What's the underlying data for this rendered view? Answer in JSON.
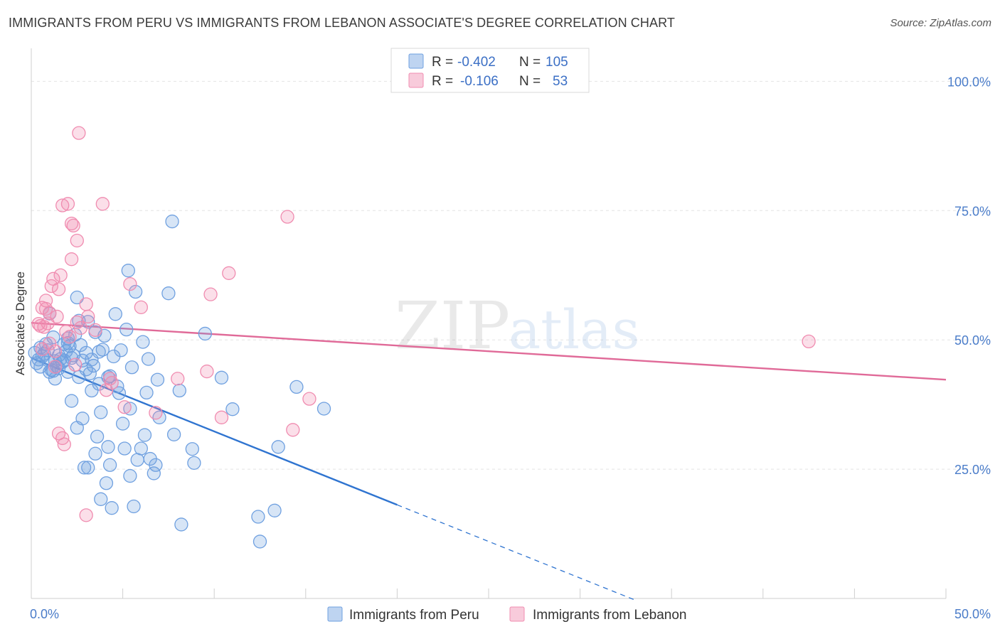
{
  "header": {
    "title": "IMMIGRANTS FROM PERU VS IMMIGRANTS FROM LEBANON ASSOCIATE'S DEGREE CORRELATION CHART",
    "source": "Source: ZipAtlas.com"
  },
  "watermark": {
    "zip": "ZIP",
    "atlas": "atlas"
  },
  "legend_top": [
    {
      "r_label": "R =",
      "r_value": "-0.402",
      "n_label": "N =",
      "n_value": "105",
      "color": "#6fa0e0"
    },
    {
      "r_label": "R =",
      "r_value": "-0.106",
      "n_label": "N =",
      "n_value": "53",
      "color": "#f08cb0"
    }
  ],
  "chart_data": {
    "type": "scatter",
    "title": "IMMIGRANTS FROM PERU VS IMMIGRANTS FROM LEBANON ASSOCIATE'S DEGREE CORRELATION CHART",
    "xlabel": "",
    "ylabel": "Associate's Degree",
    "xlim": [
      0,
      50
    ],
    "ylim": [
      0,
      105
    ],
    "x_tick_labels": [
      "0.0%",
      "50.0%"
    ],
    "y_ticks": [
      25,
      50,
      75,
      100
    ],
    "y_tick_labels": [
      "25.0%",
      "50.0%",
      "75.0%",
      "100.0%"
    ],
    "grid": true,
    "legend_position": "bottom-center",
    "series": [
      {
        "name": "Immigrants from Peru",
        "color": "#6fa0e0",
        "line_color": "#2f74d0",
        "trend": {
          "x0": 0,
          "y0": 46.5,
          "x1": 20,
          "y1": 18.1,
          "dash_to_x": 33,
          "dash_to_y": -0.3
        },
        "points": [
          [
            0.2,
            47.5
          ],
          [
            0.3,
            45.5
          ],
          [
            0.4,
            46.2
          ],
          [
            0.5,
            44.8
          ],
          [
            0.6,
            46.8
          ],
          [
            0.7,
            47.3
          ],
          [
            0.8,
            49.2
          ],
          [
            0.9,
            46.1
          ],
          [
            1.0,
            55.1
          ],
          [
            1.0,
            43.8
          ],
          [
            1.1,
            44.2
          ],
          [
            1.2,
            50.5
          ],
          [
            1.3,
            42.5
          ],
          [
            1.3,
            45.9
          ],
          [
            1.4,
            44.9
          ],
          [
            1.5,
            44.5
          ],
          [
            1.6,
            46.3
          ],
          [
            1.7,
            45.7
          ],
          [
            1.8,
            46.0
          ],
          [
            1.8,
            49.2
          ],
          [
            1.9,
            47.8
          ],
          [
            2.0,
            43.8
          ],
          [
            2.0,
            49.4
          ],
          [
            2.1,
            48.8
          ],
          [
            2.2,
            46.5
          ],
          [
            2.2,
            38.2
          ],
          [
            2.3,
            47.0
          ],
          [
            2.4,
            51.0
          ],
          [
            2.5,
            33.0
          ],
          [
            2.5,
            58.2
          ],
          [
            2.6,
            53.7
          ],
          [
            2.7,
            49.0
          ],
          [
            2.8,
            34.8
          ],
          [
            2.8,
            46.0
          ],
          [
            2.9,
            25.3
          ],
          [
            3.0,
            47.5
          ],
          [
            3.1,
            25.3
          ],
          [
            3.1,
            53.5
          ],
          [
            3.2,
            43.5
          ],
          [
            3.3,
            46.2
          ],
          [
            3.3,
            40.2
          ],
          [
            3.4,
            45.0
          ],
          [
            3.5,
            28.0
          ],
          [
            3.5,
            51.5
          ],
          [
            3.6,
            31.3
          ],
          [
            3.7,
            47.7
          ],
          [
            3.8,
            19.2
          ],
          [
            3.8,
            36.0
          ],
          [
            3.9,
            48.1
          ],
          [
            4.0,
            50.8
          ],
          [
            4.1,
            22.3
          ],
          [
            4.2,
            29.3
          ],
          [
            4.2,
            42.8
          ],
          [
            4.3,
            25.8
          ],
          [
            4.4,
            17.5
          ],
          [
            4.5,
            46.8
          ],
          [
            4.6,
            55.0
          ],
          [
            4.7,
            41.0
          ],
          [
            4.8,
            39.7
          ],
          [
            4.9,
            48.0
          ],
          [
            5.0,
            33.8
          ],
          [
            5.1,
            29.0
          ],
          [
            5.2,
            52.0
          ],
          [
            5.3,
            63.4
          ],
          [
            5.4,
            23.7
          ],
          [
            5.4,
            36.7
          ],
          [
            5.6,
            17.8
          ],
          [
            5.7,
            59.3
          ],
          [
            5.8,
            26.8
          ],
          [
            6.0,
            29.0
          ],
          [
            6.1,
            49.6
          ],
          [
            6.2,
            31.6
          ],
          [
            6.3,
            39.8
          ],
          [
            6.5,
            27.0
          ],
          [
            6.7,
            24.2
          ],
          [
            6.8,
            25.8
          ],
          [
            6.9,
            42.3
          ],
          [
            7.0,
            35.0
          ],
          [
            7.5,
            59.0
          ],
          [
            7.7,
            72.9
          ],
          [
            7.8,
            31.7
          ],
          [
            8.1,
            40.2
          ],
          [
            8.2,
            14.3
          ],
          [
            8.8,
            28.9
          ],
          [
            8.9,
            26.2
          ],
          [
            9.5,
            51.2
          ],
          [
            10.4,
            42.7
          ],
          [
            11.0,
            36.6
          ],
          [
            12.4,
            15.8
          ],
          [
            12.5,
            11.0
          ],
          [
            13.3,
            17.0
          ],
          [
            13.5,
            29.3
          ],
          [
            14.5,
            40.9
          ],
          [
            16.0,
            36.7
          ],
          [
            0.5,
            48.5
          ],
          [
            1.2,
            44.0
          ],
          [
            2.0,
            50.3
          ],
          [
            3.0,
            44.3
          ],
          [
            4.3,
            43.0
          ],
          [
            1.5,
            47.0
          ],
          [
            0.9,
            48.0
          ],
          [
            2.6,
            42.8
          ],
          [
            3.7,
            41.5
          ],
          [
            5.5,
            44.7
          ],
          [
            6.4,
            46.3
          ]
        ]
      },
      {
        "name": "Immigrants from Lebanon",
        "color": "#f08cb0",
        "line_color": "#e06a98",
        "trend": {
          "x0": 0,
          "y0": 53.3,
          "x1": 50,
          "y1": 42.3
        },
        "points": [
          [
            0.4,
            53.1
          ],
          [
            0.5,
            52.7
          ],
          [
            0.6,
            56.2
          ],
          [
            0.7,
            52.5
          ],
          [
            0.8,
            56.0
          ],
          [
            0.9,
            53.2
          ],
          [
            1.0,
            55.2
          ],
          [
            1.0,
            49.3
          ],
          [
            1.1,
            60.4
          ],
          [
            1.2,
            61.8
          ],
          [
            1.3,
            44.8
          ],
          [
            1.4,
            54.5
          ],
          [
            1.5,
            31.9
          ],
          [
            1.5,
            59.8
          ],
          [
            1.6,
            62.5
          ],
          [
            1.7,
            31.0
          ],
          [
            1.7,
            76.0
          ],
          [
            1.8,
            29.8
          ],
          [
            1.9,
            51.6
          ],
          [
            2.0,
            76.3
          ],
          [
            2.2,
            65.6
          ],
          [
            2.2,
            72.5
          ],
          [
            2.3,
            72.1
          ],
          [
            2.4,
            45.2
          ],
          [
            2.5,
            69.2
          ],
          [
            2.5,
            53.4
          ],
          [
            2.6,
            90.0
          ],
          [
            2.7,
            52.3
          ],
          [
            3.0,
            16.1
          ],
          [
            3.0,
            56.9
          ],
          [
            3.1,
            54.5
          ],
          [
            3.5,
            51.9
          ],
          [
            3.9,
            76.3
          ],
          [
            4.1,
            40.3
          ],
          [
            4.3,
            42.5
          ],
          [
            4.4,
            41.7
          ],
          [
            5.1,
            37.0
          ],
          [
            5.4,
            60.8
          ],
          [
            6.0,
            56.3
          ],
          [
            6.8,
            35.9
          ],
          [
            8.0,
            42.5
          ],
          [
            9.6,
            43.9
          ],
          [
            9.8,
            58.8
          ],
          [
            10.4,
            35.0
          ],
          [
            10.8,
            62.9
          ],
          [
            14.0,
            73.8
          ],
          [
            14.3,
            32.6
          ],
          [
            15.2,
            38.6
          ],
          [
            42.5,
            49.7
          ],
          [
            0.6,
            48.2
          ],
          [
            1.3,
            47.8
          ],
          [
            2.1,
            50.6
          ],
          [
            0.8,
            57.6
          ]
        ]
      }
    ]
  },
  "legend_bottom": [
    {
      "label": "Immigrants from Peru",
      "color": "#6fa0e0"
    },
    {
      "label": "Immigrants from Lebanon",
      "color": "#f08cb0"
    }
  ]
}
